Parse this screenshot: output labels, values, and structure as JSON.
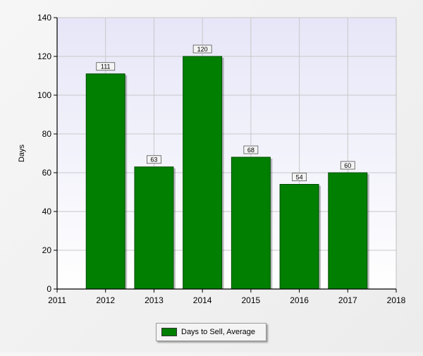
{
  "chart_data": {
    "type": "bar",
    "categories": [
      "2012",
      "2013",
      "2014",
      "2015",
      "2016",
      "2017"
    ],
    "series": [
      {
        "name": "Days to Sell, Average",
        "values": [
          111,
          63,
          120,
          68,
          54,
          60
        ]
      }
    ],
    "data_labels": [
      "111",
      "63",
      "120",
      "68",
      "54",
      "60"
    ],
    "xlabel": "",
    "ylabel": "Days",
    "xlim": [
      2011,
      2018
    ],
    "x_ticks": [
      "2011",
      "2012",
      "2013",
      "2014",
      "2015",
      "2016",
      "2017",
      "2018"
    ],
    "ylim": [
      0,
      140
    ],
    "y_ticks": [
      "0",
      "20",
      "40",
      "60",
      "80",
      "100",
      "120",
      "140"
    ],
    "grid": true,
    "legend_position": "bottom-center"
  },
  "colors": {
    "bar_fill": "#007f00",
    "bar_stroke": "#004d00",
    "plot_bg_top": "#e6e6f8",
    "plot_bg_bottom": "#ffffff",
    "grid": "#c8c8c8"
  },
  "legend": {
    "label": "Days to Sell, Average"
  }
}
